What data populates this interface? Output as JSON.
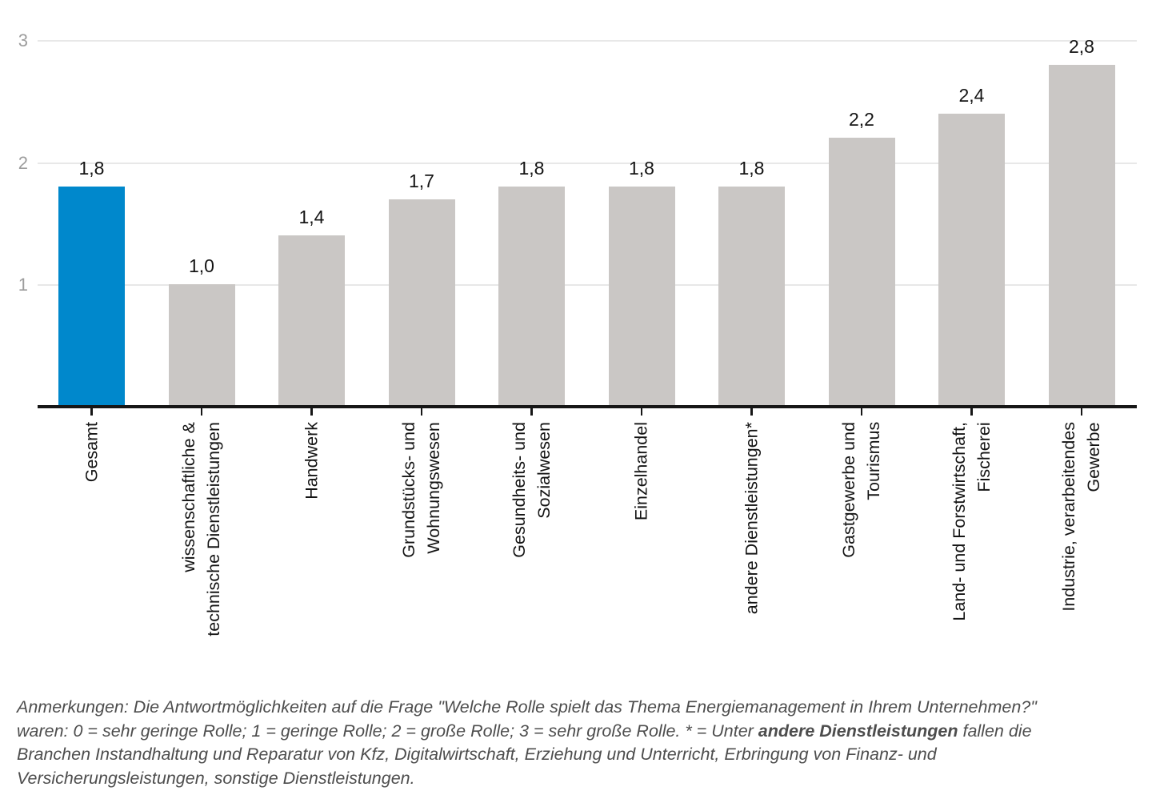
{
  "chart_data": {
    "type": "bar",
    "title": "",
    "xlabel": "",
    "ylabel": "",
    "categories": [
      "Gesamt",
      "wissenschaftliche &\ntechnische Dienstleistungen",
      "Handwerk",
      "Grundstücks- und\nWohnungswesen",
      "Gesundheits- und\nSozialwesen",
      "Einzelhandel",
      "andere Dienstleistungen*",
      "Gastgewerbe und\nTourismus",
      "Land- und Forstwirtschaft,\nFischerei",
      "Industrie, verarbeitendes\nGewerbe"
    ],
    "values": [
      1.8,
      1.0,
      1.4,
      1.7,
      1.8,
      1.8,
      1.8,
      2.2,
      2.4,
      2.8
    ],
    "value_labels": [
      "1,8",
      "1,0",
      "1,4",
      "1,7",
      "1,8",
      "1,8",
      "1,8",
      "2,2",
      "2,4",
      "2,8"
    ],
    "highlight_index": 0,
    "ylim": [
      0,
      3
    ],
    "yticks": [
      1,
      2,
      3
    ],
    "grid": true,
    "legend": "none",
    "category_labels_rotated_degrees": 90,
    "decimal_separator": ","
  },
  "colors": {
    "background": "#ffffff",
    "bar_default": "#cac7c5",
    "bar_highlight": "#0088cc",
    "gridline": "#e8e8e8",
    "axis": "#161616",
    "y_tick_label": "#9d9d9d",
    "value_label": "#141414",
    "category_label": "#141414",
    "footnote_text": "#4d4d4d"
  },
  "footnote": {
    "lines": [
      [
        {
          "text": "Anmerkungen: Die Antwortmöglichkeiten auf die Frage \"Welche Rolle spielt das Thema Energiemanagement in Ihrem Unternehmen?\"",
          "bold": false
        }
      ],
      [
        {
          "text": "waren: 0 = sehr geringe Rolle; 1 = geringe Rolle; 2 = große Rolle; 3 = sehr große Rolle. * = Unter ",
          "bold": false
        },
        {
          "text": "andere Dienstleistungen",
          "bold": true
        },
        {
          "text": " fallen die",
          "bold": false
        }
      ],
      [
        {
          "text": "Branchen Instandhaltung und Reparatur von Kfz, Digitalwirtschaft, Erziehung und Unterricht, Erbringung von Finanz- und",
          "bold": false
        }
      ],
      [
        {
          "text": "Versicherungsleistungen, sonstige Dienstleistungen.",
          "bold": false
        }
      ]
    ]
  }
}
